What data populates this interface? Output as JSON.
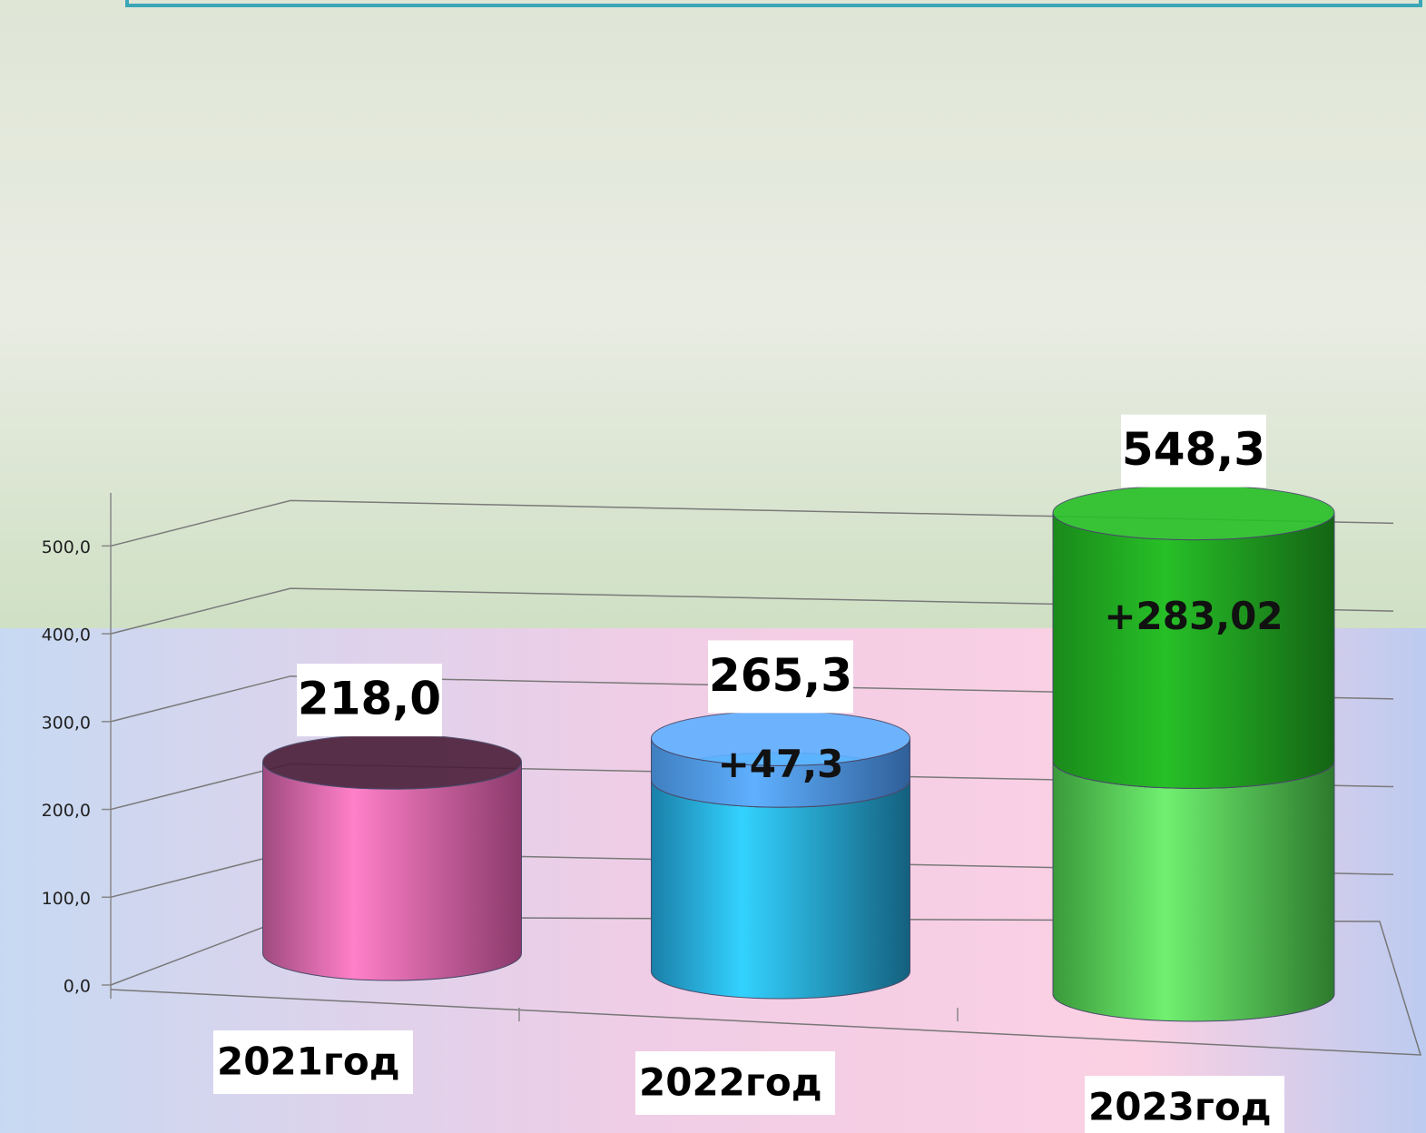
{
  "chart_data": {
    "type": "bar",
    "categories": [
      "2021год",
      "2022год",
      "2023год"
    ],
    "series": [
      {
        "name": null,
        "colors": [
          "#ff80c8",
          "#33d2ff",
          "#70f070"
        ],
        "values": [
          218.0,
          218.0,
          265.3
        ]
      },
      {
        "name": null,
        "colors": [
          null,
          "#5fb0ff",
          "#27c027"
        ],
        "values": [
          null,
          47.3,
          283.02
        ],
        "value_labels": [
          null,
          "+47,3",
          "+283,02"
        ]
      }
    ],
    "totals": [
      218.0,
      265.3,
      548.3
    ],
    "total_labels": [
      "218,0",
      "265,3",
      "548,3"
    ],
    "ylim": [
      0,
      550
    ],
    "yticks": [
      {
        "value": 0,
        "label": "0,0"
      },
      {
        "value": 100,
        "label": "100,0"
      },
      {
        "value": 200,
        "label": "200,0"
      },
      {
        "value": 300,
        "label": "300,0"
      },
      {
        "value": 400,
        "label": "400,0"
      },
      {
        "value": 500,
        "label": "500,0"
      }
    ],
    "grid": true
  }
}
